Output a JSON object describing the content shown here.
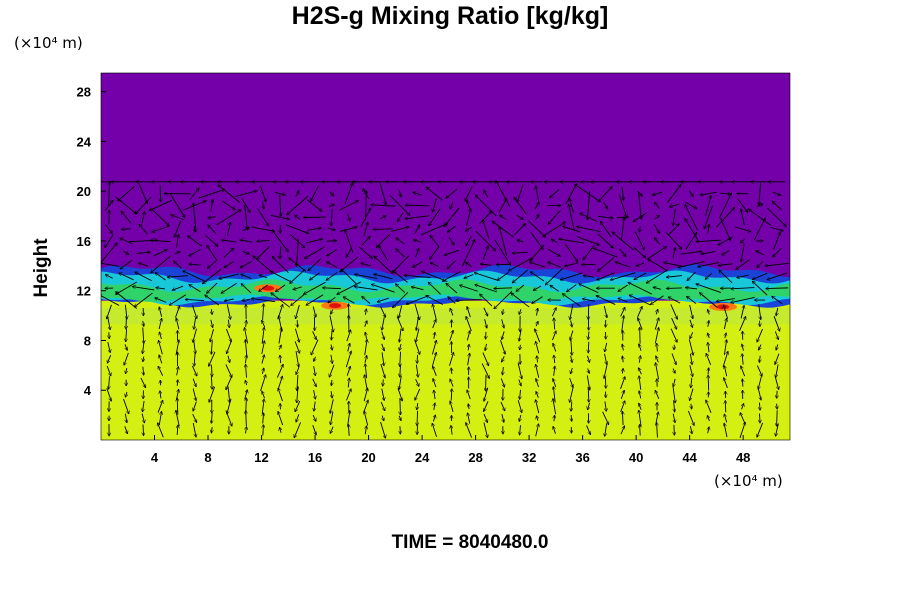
{
  "chart_data": {
    "type": "heatmap",
    "title": "H2S-g Mixing Ratio [kg/kg]",
    "ylabel": "Height",
    "y_unit": "(×10⁴ m)",
    "x_unit": "(×10⁴ m)",
    "footer": "TIME = 8040480.0",
    "xlim": [
      0,
      51.5
    ],
    "ylim": [
      0,
      29.5
    ],
    "x_ticks": [
      4,
      8,
      12,
      16,
      20,
      24,
      28,
      32,
      36,
      40,
      44,
      48
    ],
    "y_ticks": [
      4,
      8,
      12,
      16,
      20,
      24,
      28
    ],
    "x_tick_labels": [
      "4",
      "8",
      "12",
      "16",
      "20",
      "24",
      "28",
      "32",
      "36",
      "40",
      "44",
      "48"
    ],
    "y_tick_labels": [
      "4",
      "8",
      "12",
      "16",
      "20",
      "24",
      "28"
    ],
    "colors": {
      "upper_background": "#7300a8",
      "lower_background": "#d4ef12",
      "lower_band": "#bfe83a",
      "layer_blue": "#1a44d8",
      "layer_cyan": "#19c8d8",
      "layer_green": "#2fd36a",
      "hotspot_orange": "#ff7a10",
      "hotspot_red": "#e01010"
    },
    "features": [
      {
        "name": "mixing-layer",
        "x_range": [
          0,
          51.5
        ],
        "y_range": [
          10.8,
          14.0
        ]
      },
      {
        "name": "hotspot",
        "x": 12.5,
        "y": 12.2
      },
      {
        "name": "hotspot",
        "x": 17.5,
        "y": 10.8
      },
      {
        "name": "hotspot",
        "x": 46.5,
        "y": 10.7
      }
    ],
    "vector_field": "wind arrows over entire domain"
  }
}
